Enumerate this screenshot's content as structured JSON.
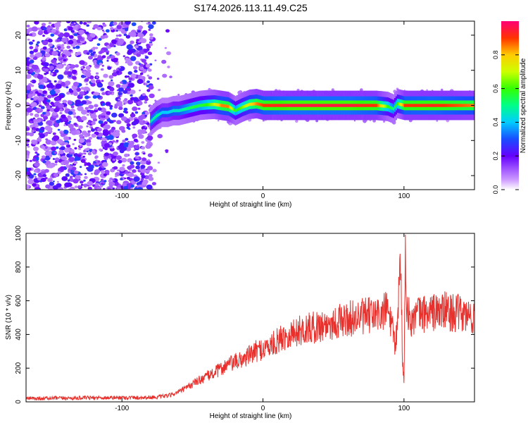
{
  "title": "S174.2026.113.11.49.C25",
  "colorbar": {
    "label": "Normalized spectral amplitude",
    "range": [
      0,
      1
    ],
    "ticks": [
      "0.0",
      "0.2",
      "0.4",
      "0.6",
      "0.8"
    ],
    "tick_values": [
      0,
      0.2,
      0.4,
      0.6,
      0.8
    ]
  },
  "chart_data": [
    {
      "type": "heatmap",
      "title": "S174.2026.113.11.49.C25",
      "xlabel": "Height of straight line (km)",
      "ylabel": "Frequency (Hz)",
      "xlim": [
        -168,
        150
      ],
      "ylim": [
        -24,
        24
      ],
      "xticks": [
        -100,
        0,
        100
      ],
      "xtick_labels": [
        "-100",
        "0",
        "100"
      ],
      "yticks": [
        -20,
        -10,
        0,
        10,
        20
      ],
      "ytick_labels": [
        "-20",
        "-10",
        "0",
        "10",
        "20"
      ],
      "colormap": "rainbow (violet to red)",
      "noise_region_x": [
        -168,
        -65
      ],
      "ridge": {
        "description": "high-amplitude frequency ridge",
        "x": [
          -80,
          -76,
          -72,
          -68,
          -64,
          -60,
          -55,
          -50,
          -45,
          -40,
          -35,
          -30,
          -25,
          -20,
          -15,
          -10,
          -5,
          0,
          20,
          40,
          60,
          80,
          88,
          92,
          95,
          100,
          120,
          150
        ],
        "frequency": [
          -4.5,
          -3.0,
          -2.0,
          -2.0,
          -1.5,
          -1.5,
          -1.0,
          -0.5,
          0.0,
          0.2,
          0.3,
          0.0,
          -0.3,
          -1.5,
          -0.5,
          0.3,
          0.5,
          0.0,
          0.0,
          0.0,
          0.0,
          0.0,
          -0.3,
          -1.0,
          0.5,
          0.0,
          0.0,
          0.0
        ],
        "amplitude": [
          0.45,
          0.5,
          0.4,
          0.4,
          0.45,
          0.45,
          0.5,
          0.55,
          0.55,
          0.6,
          0.7,
          0.85,
          0.85,
          0.55,
          0.65,
          0.75,
          0.85,
          0.9,
          0.95,
          0.95,
          0.95,
          0.9,
          0.6,
          0.5,
          0.6,
          0.9,
          0.92,
          0.85
        ]
      }
    },
    {
      "type": "line",
      "xlabel": "Height of straight line (km)",
      "ylabel": "SNR (10 * v/v)",
      "xlim": [
        -168,
        150
      ],
      "ylim": [
        0,
        1000
      ],
      "xticks": [
        -100,
        0,
        100
      ],
      "xtick_labels": [
        "-100",
        "0",
        "100"
      ],
      "yticks": [
        0,
        200,
        400,
        600,
        800,
        1000
      ],
      "ytick_labels": [
        "0",
        "200",
        "400",
        "600",
        "800",
        "1000"
      ],
      "series": [
        {
          "name": "SNR",
          "color": "#e8302c",
          "x": [
            -168,
            -140,
            -110,
            -90,
            -75,
            -65,
            -55,
            -45,
            -35,
            -25,
            -15,
            -5,
            5,
            15,
            25,
            35,
            45,
            55,
            65,
            75,
            85,
            88,
            90,
            92,
            94,
            96,
            97,
            98,
            99,
            100,
            101,
            102,
            104,
            110,
            120,
            130,
            140,
            150
          ],
          "values": [
            20,
            22,
            25,
            25,
            28,
            40,
            80,
            130,
            170,
            220,
            250,
            300,
            330,
            390,
            420,
            440,
            460,
            480,
            500,
            510,
            520,
            560,
            500,
            420,
            300,
            600,
            780,
            700,
            250,
            120,
            900,
            600,
            480,
            520,
            530,
            540,
            520,
            500
          ]
        }
      ]
    }
  ]
}
